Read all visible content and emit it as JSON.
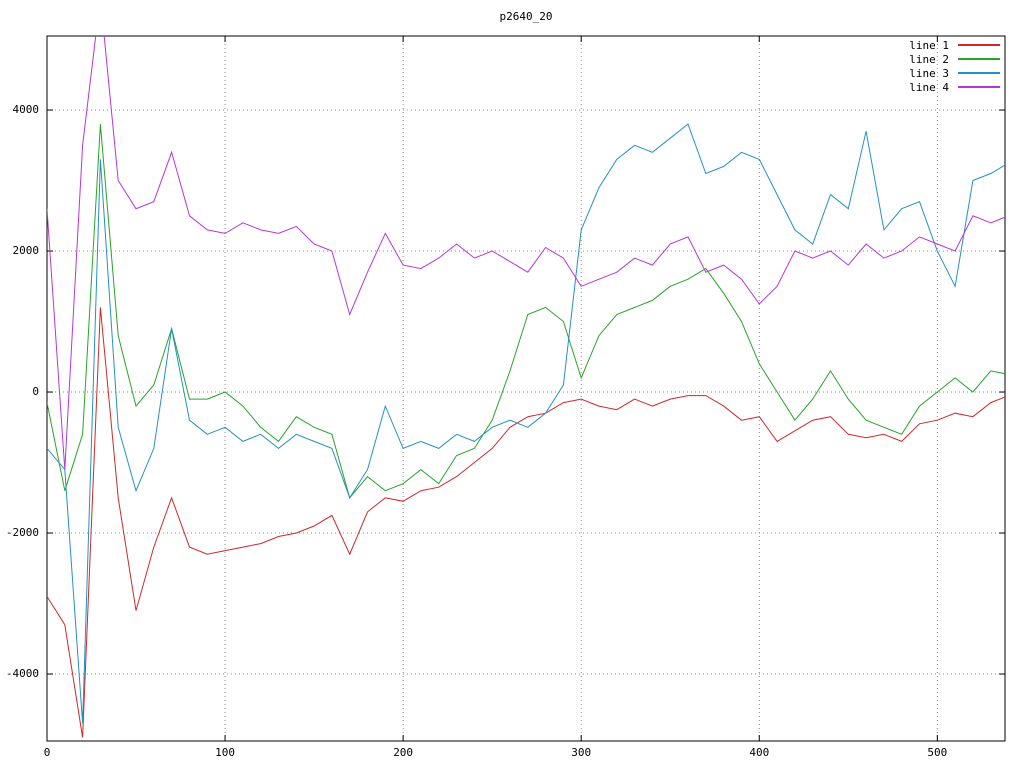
{
  "chart_data": {
    "type": "line",
    "title": "p2640_20",
    "xlabel": "",
    "ylabel": "",
    "xlim": [
      0,
      538
    ],
    "ylim": [
      -4950,
      5050
    ],
    "xticks": [
      0,
      100,
      200,
      300,
      400,
      500
    ],
    "yticks": [
      -4000,
      -2000,
      0,
      2000,
      4000
    ],
    "grid": "dotted",
    "legend_position": "top-right",
    "x_start": 0,
    "x_step": 10,
    "series": [
      {
        "name": "line 1",
        "color": "#cc2a2a",
        "values": [
          -2900,
          -3300,
          -4900,
          1200,
          -1500,
          -3100,
          -2200,
          -1500,
          -2200,
          -2300,
          -2250,
          -2200,
          -2150,
          -2050,
          -2000,
          -1900,
          -1750,
          -2300,
          -1700,
          -1500,
          -1550,
          -1400,
          -1350,
          -1200,
          -1000,
          -800,
          -500,
          -350,
          -300,
          -150,
          -100,
          -200,
          -250,
          -100,
          -200,
          -100,
          -50,
          -50,
          -200,
          -400,
          -350,
          -700,
          -550,
          -400,
          -350,
          -600,
          -650,
          -600,
          -700,
          -450,
          -400,
          -300,
          -350,
          -150,
          -50
        ]
      },
      {
        "name": "line 2",
        "color": "#27a427",
        "values": [
          -150,
          -1400,
          -600,
          3800,
          800,
          -200,
          100,
          900,
          -100,
          -100,
          0,
          -200,
          -500,
          -700,
          -350,
          -500,
          -600,
          -1500,
          -1200,
          -1400,
          -1300,
          -1100,
          -1300,
          -900,
          -800,
          -400,
          300,
          1100,
          1200,
          1000,
          200,
          800,
          1100,
          1200,
          1300,
          1500,
          1600,
          1750,
          1400,
          1000,
          400,
          0,
          -400,
          -100,
          300,
          -100,
          -400,
          -500,
          -600,
          -200,
          0,
          200,
          0,
          300,
          250
        ]
      },
      {
        "name": "line 3",
        "color": "#2590c6",
        "values": [
          -800,
          -1100,
          -4700,
          3300,
          -500,
          -1400,
          -800,
          900,
          -400,
          -600,
          -500,
          -700,
          -600,
          -800,
          -600,
          -700,
          -800,
          -1500,
          -1100,
          -200,
          -800,
          -700,
          -800,
          -600,
          -700,
          -500,
          -400,
          -500,
          -300,
          100,
          2300,
          2900,
          3300,
          3500,
          3400,
          3600,
          3800,
          3100,
          3200,
          3400,
          3300,
          2800,
          2300,
          2100,
          2800,
          2600,
          3700,
          2300,
          2600,
          2700,
          2000,
          1500,
          3000,
          3100,
          3250
        ]
      },
      {
        "name": "line 4",
        "color": "#b637d8",
        "values": [
          2600,
          -1100,
          3500,
          5600,
          3000,
          2600,
          2700,
          3400,
          2500,
          2300,
          2250,
          2400,
          2300,
          2250,
          2350,
          2100,
          2000,
          1100,
          1700,
          2250,
          1800,
          1750,
          1900,
          2100,
          1900,
          2000,
          1850,
          1700,
          2050,
          1900,
          1500,
          1600,
          1700,
          1900,
          1800,
          2100,
          2200,
          1700,
          1800,
          1600,
          1250,
          1500,
          2000,
          1900,
          2000,
          1800,
          2100,
          1900,
          2000,
          2200,
          2100,
          2000,
          2500,
          2400,
          2500
        ]
      }
    ]
  }
}
